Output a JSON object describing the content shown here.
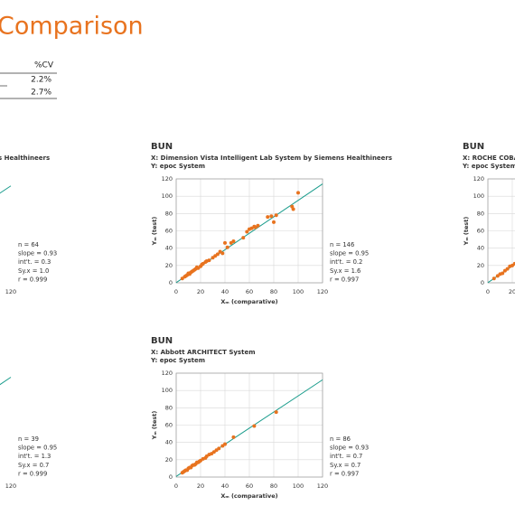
{
  "title": "Comparison",
  "table": {
    "header": [
      "%CV"
    ],
    "rows": [
      [
        "2.2%"
      ],
      [
        "2.7%"
      ]
    ]
  },
  "chart_data": [
    {
      "type": "scatter",
      "subtitle": [
        "s Healthineers"
      ],
      "x": [],
      "values": [],
      "color": "#e8731f",
      "xlim": [
        0,
        120
      ],
      "ylim": [
        0,
        120
      ],
      "xticks": [
        120
      ],
      "yticks": [],
      "fit": {
        "x": [
          0,
          120
        ],
        "values": [
          0.3,
          111.9
        ],
        "color": "#1a9c8c"
      },
      "annotations": [
        "n = 64",
        "slope = 0.93",
        "int't. = 0.3",
        "Sy.x = 1.0",
        "r = 0.999"
      ]
    },
    {
      "type": "scatter",
      "title": "BUN",
      "subtitle": [
        "X: Dimension Vista Intelligent Lab System by Siemens Healthineers",
        "Y: epoc System"
      ],
      "x": [
        5,
        7,
        8,
        9,
        10,
        11,
        12,
        13,
        14,
        15,
        16,
        17,
        18,
        20,
        21,
        22,
        24,
        25,
        27,
        30,
        32,
        34,
        36,
        38,
        40,
        42,
        45,
        47,
        55,
        58,
        60,
        62,
        64,
        65,
        67,
        75,
        78,
        80,
        82,
        95,
        96,
        100
      ],
      "values": [
        5,
        7,
        8,
        9,
        11,
        10,
        12,
        13,
        14,
        15,
        16,
        18,
        17,
        19,
        21,
        22,
        24,
        25,
        26,
        29,
        31,
        33,
        36,
        34,
        46,
        41,
        46,
        48,
        52,
        59,
        62,
        63,
        65,
        64,
        66,
        76,
        77,
        70,
        78,
        88,
        85,
        104
      ],
      "color": "#e8731f",
      "xlim": [
        0,
        120
      ],
      "ylim": [
        0,
        120
      ],
      "xticks": [
        0,
        20,
        40,
        60,
        80,
        100,
        120
      ],
      "yticks": [
        0,
        20,
        40,
        60,
        80,
        100,
        120
      ],
      "xlabel": "Xₘ (comparative)",
      "ylabel": "Yₘ (test)",
      "grid": true,
      "fit": {
        "x": [
          0,
          120
        ],
        "values": [
          0.2,
          114.2
        ],
        "color": "#1a9c8c"
      },
      "annotations": [
        "n = 146",
        "slope = 0.95",
        "int't. = 0.2",
        "Sy.x = 1.6",
        "r = 0.997"
      ]
    },
    {
      "type": "scatter",
      "title": "BUN",
      "subtitle": [
        "X: ROCHE COBAS",
        "Y: epoc System"
      ],
      "x": [
        5,
        8,
        10,
        12,
        14,
        16,
        18,
        20,
        22,
        25
      ],
      "values": [
        5,
        8,
        10,
        11,
        14,
        16,
        19,
        20,
        22,
        25
      ],
      "color": "#e8731f",
      "xlim": [
        0,
        120
      ],
      "ylim": [
        0,
        120
      ],
      "xticks": [
        0,
        20
      ],
      "yticks": [
        0,
        20,
        40,
        60,
        80,
        100,
        120
      ],
      "ylabel": "Yₘ (test)",
      "grid": true,
      "fit": {
        "x": [
          0,
          120
        ],
        "values": [
          0.2,
          114.2
        ],
        "color": "#1a9c8c"
      }
    },
    {
      "type": "scatter",
      "x": [],
      "values": [],
      "color": "#e8731f",
      "xlim": [
        0,
        120
      ],
      "ylim": [
        0,
        120
      ],
      "xticks": [
        120
      ],
      "yticks": [],
      "fit": {
        "x": [
          0,
          120
        ],
        "values": [
          1.3,
          115.3
        ],
        "color": "#1a9c8c"
      },
      "annotations": [
        "n = 39",
        "slope = 0.95",
        "int't. = 1.3",
        "Sy.x = 0.7",
        "r = 0.999"
      ]
    },
    {
      "type": "scatter",
      "title": "BUN",
      "subtitle": [
        "X: Abbott ARCHITECT System",
        "Y: epoc System"
      ],
      "x": [
        5,
        6,
        7,
        8,
        9,
        10,
        11,
        12,
        13,
        14,
        15,
        16,
        17,
        18,
        19,
        20,
        22,
        24,
        25,
        27,
        29,
        31,
        33,
        35,
        38,
        40,
        47,
        64,
        82
      ],
      "values": [
        5,
        6,
        7,
        8,
        8,
        10,
        11,
        11,
        13,
        14,
        14,
        15,
        17,
        17,
        18,
        19,
        21,
        22,
        24,
        26,
        27,
        29,
        31,
        33,
        36,
        38,
        46,
        59,
        75
      ],
      "color": "#e8731f",
      "xlim": [
        0,
        120
      ],
      "ylim": [
        0,
        120
      ],
      "xticks": [
        0,
        20,
        40,
        60,
        80,
        100,
        120
      ],
      "yticks": [
        0,
        20,
        40,
        60,
        80,
        100,
        120
      ],
      "xlabel": "Xₘ (comparative)",
      "ylabel": "Yₘ (test)",
      "grid": true,
      "fit": {
        "x": [
          0,
          120
        ],
        "values": [
          0.7,
          112.3
        ],
        "color": "#1a9c8c"
      },
      "annotations": [
        "n = 86",
        "slope = 0.93",
        "int't. = 0.7",
        "Sy.x = 0.7",
        "r = 0.997"
      ]
    }
  ]
}
